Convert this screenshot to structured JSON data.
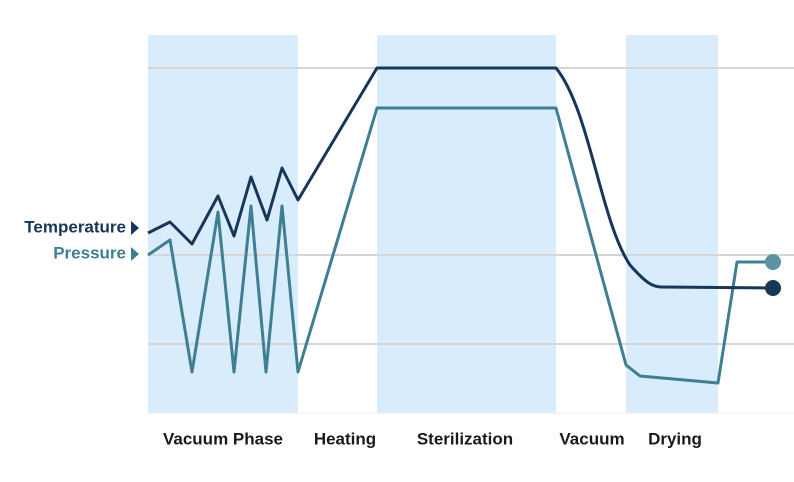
{
  "legend": {
    "temperature": "Temperature",
    "pressure": "Pressure"
  },
  "phases": [
    "Vacuum Phase",
    "Heating",
    "Sterilization",
    "Vacuum",
    "Drying"
  ]
}
